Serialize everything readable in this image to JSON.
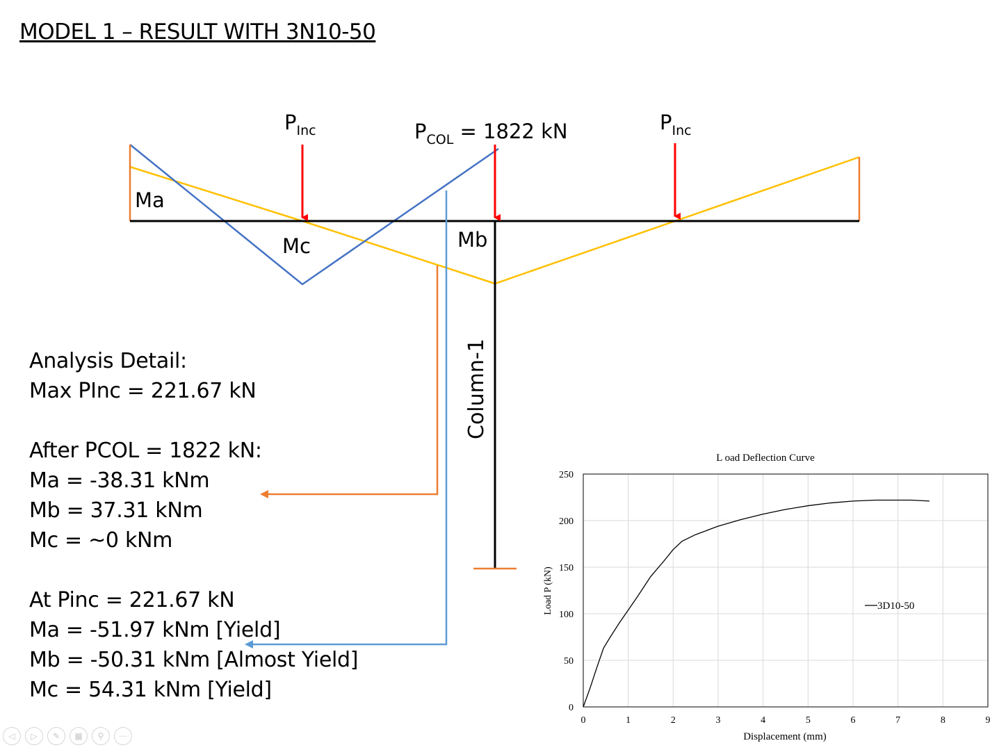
{
  "title": "MODEL 1 – RESULT WITH 3N10-50",
  "diagram": {
    "p_inc_main": "P",
    "p_inc_sub": "Inc",
    "p_col_main": "P",
    "p_col_sub": "COL",
    "p_col_value": " = 1822 kN",
    "ma_label": "Ma",
    "mb_label": "Mb",
    "mc_label": "Mc",
    "column_label": "Column-1",
    "colors": {
      "beam": "#000000",
      "load_arrow": "#ff0000",
      "yellow_moment": "#ffc000",
      "blue_moment": "#4472c4",
      "orange": "#ed7d31"
    }
  },
  "analysis": {
    "heading": "Analysis Detail:",
    "max_pinc": "Max PInc = 221.67 kN",
    "after_heading": "After PCOL = 1822 kN:",
    "after_ma": "Ma = -38.31 kNm",
    "after_mb": "Mb = 37.31 kNm",
    "after_mc": "Mc = ~0 kNm",
    "at_heading": "At Pinc = 221.67 kN",
    "at_ma": "Ma = -51.97 kNm [Yield]",
    "at_mb": "Mb = -50.31 kNm [Almost Yield]",
    "at_mc": "Mc = 54.31 kNm [Yield]"
  },
  "chart_data": {
    "type": "line",
    "title": "L oad Deflection  Curve",
    "xlabel": "Displacement (mm)",
    "ylabel": "Load P (kN)",
    "xlim": [
      0,
      9
    ],
    "ylim": [
      0,
      250
    ],
    "xticks": [
      0,
      1,
      2,
      3,
      4,
      5,
      6,
      7,
      8,
      9
    ],
    "yticks": [
      0,
      50,
      100,
      150,
      200,
      250
    ],
    "grid": true,
    "legend_position": "right-middle",
    "series": [
      {
        "name": "3D10-50",
        "color": "#000000",
        "x": [
          0,
          0.15,
          0.3,
          0.45,
          0.6,
          0.8,
          1.0,
          1.2,
          1.5,
          1.8,
          2.0,
          2.2,
          2.5,
          3.0,
          3.5,
          4.0,
          4.5,
          5.0,
          5.5,
          6.0,
          6.5,
          7.0,
          7.3,
          7.7
        ],
        "y": [
          0,
          20,
          42,
          63,
          75,
          90,
          104,
          118,
          140,
          157,
          169,
          178,
          185,
          194,
          201,
          207,
          212,
          216,
          219,
          221,
          222,
          222,
          222,
          221
        ]
      }
    ]
  },
  "toolbar": {
    "buttons": [
      "prev-icon",
      "next-icon",
      "pen-icon",
      "slides-icon",
      "zoom-icon",
      "more-icon"
    ],
    "glyphs": [
      "◁",
      "▷",
      "✎",
      "▦",
      "⚲",
      "⋯"
    ]
  }
}
